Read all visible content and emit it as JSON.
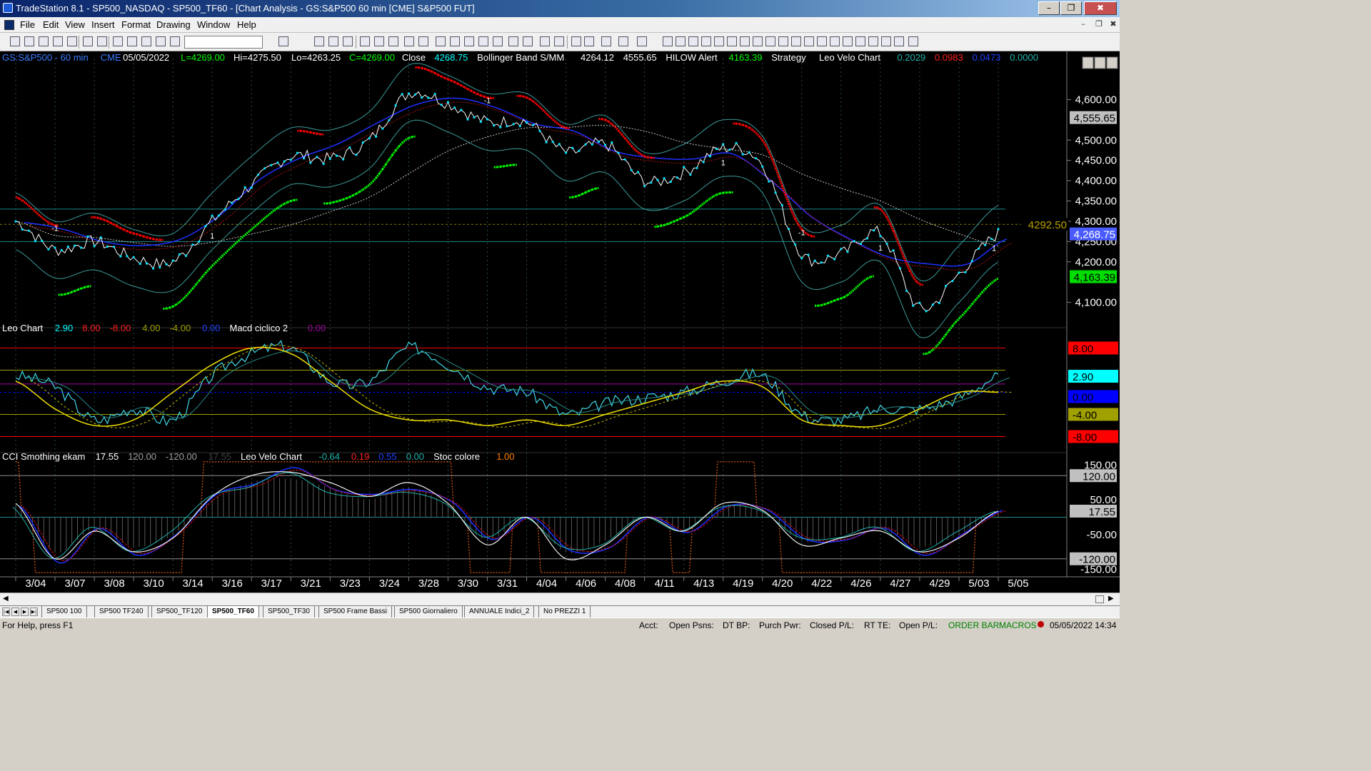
{
  "window": {
    "title": "TradeStation 8.1 - SP500_NASDAQ - SP500_TF60 - [Chart Analysis - GS:S&P500  60 min  [CME] S&P500 FUT]",
    "minimize": "–",
    "restore": "❐",
    "close": "✖"
  },
  "menu": {
    "items": [
      "File",
      "Edit",
      "View",
      "Insert",
      "Format",
      "Drawing",
      "Window",
      "Help"
    ],
    "mdi_min": "–",
    "mdi_restore": "❐",
    "mdi_close": "✖"
  },
  "toolbar": {
    "combo_value": ""
  },
  "price_panel": {
    "header": [
      {
        "text": "GS:S&P500 - 60 min",
        "color": "#3a7bff"
      },
      {
        "text": "CME",
        "color": "#3a7bff"
      },
      {
        "text": "05/05/2022",
        "color": "#ffffff"
      },
      {
        "text": "L=4269.00",
        "color": "#00ff00"
      },
      {
        "text": "Hi=4275.50",
        "color": "#ffffff"
      },
      {
        "text": "Lo=4263.25",
        "color": "#ffffff"
      },
      {
        "text": "C=4269.00",
        "color": "#00ff00"
      },
      {
        "text": "Close",
        "color": "#ffffff"
      },
      {
        "text": "4268.75",
        "color": "#00ffff"
      },
      {
        "text": "Bollinger Band S/MM",
        "color": "#ffffff"
      },
      {
        "text": "4264.12",
        "color": "#ffffff"
      },
      {
        "text": "4555.65",
        "color": "#ffffff"
      },
      {
        "text": "HILOW Alert",
        "color": "#ffffff"
      },
      {
        "text": "4163.39",
        "color": "#00ff00"
      },
      {
        "text": "Strategy",
        "color": "#ffffff"
      },
      {
        "text": "Leo Velo Chart",
        "color": "#ffffff"
      },
      {
        "text": "0.2029",
        "color": "#20b2aa"
      },
      {
        "text": "0.0983",
        "color": "#ff2020"
      },
      {
        "text": "0.0473",
        "color": "#2040ff"
      },
      {
        "text": "0.0000",
        "color": "#20b2aa"
      }
    ],
    "y_labels": [
      "4,600.00",
      "4,500.00",
      "4,450.00",
      "4,400.00",
      "4,350.00",
      "4,300.00",
      "4,250.00",
      "4,200.00",
      "4,100.00"
    ],
    "price_tags": [
      {
        "text": "4,555.65",
        "bg": "#c0c0c0",
        "fg": "#000000"
      },
      {
        "text": "4292.50",
        "bg": "#000000",
        "fg": "#b8a000"
      },
      {
        "text": "4,268.75",
        "bg": "#4a5cff",
        "fg": "#ffffff"
      },
      {
        "text": "4,163.39",
        "bg": "#00dd00",
        "fg": "#000000"
      }
    ],
    "strategy_marks": [
      "-1",
      "1",
      "-1",
      "1",
      "-1",
      "1",
      "1"
    ]
  },
  "leo_panel": {
    "header": [
      {
        "text": "Leo Chart",
        "color": "#ffffff"
      },
      {
        "text": "2.90",
        "color": "#00ffff"
      },
      {
        "text": "8.00",
        "color": "#ff2020"
      },
      {
        "text": "-8.00",
        "color": "#ff2020"
      },
      {
        "text": "4.00",
        "color": "#a0a000"
      },
      {
        "text": "-4.00",
        "color": "#a0a000"
      },
      {
        "text": "0.00",
        "color": "#2040ff"
      },
      {
        "text": "Macd ciclico 2",
        "color": "#ffffff"
      },
      {
        "text": "0.00",
        "color": "#a000a0"
      }
    ],
    "tags": [
      {
        "text": "8.00",
        "bg": "#ff0000",
        "fg": "#000000"
      },
      {
        "text": "2.90",
        "bg": "#00ffff",
        "fg": "#000000"
      },
      {
        "text": "0.00",
        "bg": "#0000ff",
        "fg": "#000000"
      },
      {
        "text": "-4.00",
        "bg": "#a0a000",
        "fg": "#000000"
      },
      {
        "text": "-8.00",
        "bg": "#ff0000",
        "fg": "#000000"
      }
    ]
  },
  "cci_panel": {
    "header": [
      {
        "text": "CCI Smothing ekam",
        "color": "#ffffff"
      },
      {
        "text": "17.55",
        "color": "#ffffff"
      },
      {
        "text": "120.00",
        "color": "#a0a0a0"
      },
      {
        "text": "-120.00",
        "color": "#a0a0a0"
      },
      {
        "text": "17.55",
        "color": "#404040"
      },
      {
        "text": "Leo Velo Chart",
        "color": "#ffffff"
      },
      {
        "text": "-0.64",
        "color": "#20b2aa"
      },
      {
        "text": "0.19",
        "color": "#ff2020"
      },
      {
        "text": "0.55",
        "color": "#2040ff"
      },
      {
        "text": "0.00",
        "color": "#20b2aa"
      },
      {
        "text": "Stoc colore",
        "color": "#ffffff"
      },
      {
        "text": "1.00",
        "color": "#ff8000"
      }
    ],
    "y_labels": [
      "150.00",
      "50.00",
      "-50.00",
      "-150.00"
    ],
    "tags": [
      {
        "text": "120.00",
        "bg": "#c0c0c0",
        "fg": "#000000"
      },
      {
        "text": "17.55",
        "bg": "#c0c0c0",
        "fg": "#000000"
      },
      {
        "text": "-120.00",
        "bg": "#c0c0c0",
        "fg": "#000000"
      }
    ]
  },
  "x_axis": {
    "labels": [
      "3/04",
      "3/07",
      "3/08",
      "3/10",
      "3/14",
      "3/16",
      "3/17",
      "3/21",
      "3/23",
      "3/24",
      "3/28",
      "3/30",
      "3/31",
      "4/04",
      "4/06",
      "4/08",
      "4/11",
      "4/13",
      "4/19",
      "4/20",
      "4/22",
      "4/26",
      "4/27",
      "4/29",
      "5/03",
      "5/05"
    ]
  },
  "tabs": [
    "SP500 100",
    "SP500 TF240",
    "SP500_TF120",
    "SP500_TF60",
    "SP500_TF30",
    "SP500 Frame Bassi",
    "SP500 Giornaliero",
    "ANNUALE Indici_2",
    "No PREZZI 1"
  ],
  "tabs_active": 3,
  "status": {
    "help": "For Help, press F1",
    "acct": "Acct:",
    "open_psns": "Open Psns:",
    "dt_bp": "DT BP:",
    "purch_pwr": "Purch Pwr:",
    "closed_pl": "Closed P/L:",
    "rt_te": "RT TE:",
    "open_pl": "Open P/L:",
    "order_bar": "ORDER BAR",
    "macros": "MACROS",
    "datetime": "05/05/2022 14:34"
  },
  "chart_data": [
    {
      "type": "line",
      "title": "GS:S&P500 - 60 min",
      "x": [
        "3/04",
        "3/07",
        "3/08",
        "3/10",
        "3/14",
        "3/16",
        "3/17",
        "3/21",
        "3/23",
        "3/24",
        "3/28",
        "3/30",
        "3/31",
        "4/04",
        "4/06",
        "4/08",
        "4/11",
        "4/13",
        "4/19",
        "4/20",
        "4/22",
        "4/26",
        "4/27",
        "4/29",
        "5/03",
        "5/05"
      ],
      "ylim": [
        4050,
        4680
      ],
      "series": [
        {
          "values": [
            4300,
            4230,
            4250,
            4210,
            4200,
            4300,
            4390,
            4460,
            4455,
            4500,
            4615,
            4590,
            4545,
            4545,
            4470,
            4490,
            4400,
            4420,
            4480,
            4440,
            4220,
            4220,
            4270,
            4085,
            4170,
            4269
          ]
        }
      ]
    },
    {
      "type": "line",
      "title": "Leo Chart",
      "x": [
        "3/04",
        "3/07",
        "3/08",
        "3/10",
        "3/14",
        "3/16",
        "3/17",
        "3/21",
        "3/23",
        "3/24",
        "3/28",
        "3/30",
        "3/31",
        "4/04",
        "4/06",
        "4/08",
        "4/11",
        "4/13",
        "4/19",
        "4/20",
        "4/22",
        "4/26",
        "4/27",
        "4/29",
        "5/03",
        "5/05"
      ],
      "ylim": [
        -10,
        10
      ],
      "series": [
        {
          "name": "Leo Chart",
          "values": [
            3,
            1,
            -5,
            -3,
            -5,
            3,
            7,
            8,
            2,
            2,
            8,
            5,
            1,
            0,
            -4,
            -2,
            -1,
            0,
            2,
            3,
            -4,
            -5,
            -3,
            -3,
            -1,
            2.9
          ]
        },
        {
          "name": "Macd ciclico 2",
          "values": [
            2,
            -3,
            -6,
            -5,
            0,
            5,
            8,
            7,
            2,
            -3,
            -5,
            -5,
            -6,
            -5,
            -6,
            -4,
            -2,
            0,
            2,
            1,
            -5,
            -6,
            -6,
            -3,
            0,
            0
          ]
        }
      ]
    },
    {
      "type": "line",
      "title": "CCI Smothing ekam",
      "x": [
        "3/04",
        "3/07",
        "3/08",
        "3/10",
        "3/14",
        "3/16",
        "3/17",
        "3/21",
        "3/23",
        "3/24",
        "3/28",
        "3/30",
        "3/31",
        "4/04",
        "4/06",
        "4/08",
        "4/11",
        "4/13",
        "4/19",
        "4/20",
        "4/22",
        "4/26",
        "4/27",
        "4/29",
        "5/03",
        "5/05"
      ],
      "ylim": [
        -170,
        170
      ],
      "series": [
        {
          "name": "CCI Smothing ekam",
          "values": [
            40,
            -120,
            -40,
            -100,
            -60,
            60,
            120,
            130,
            100,
            60,
            100,
            40,
            -80,
            0,
            -120,
            -80,
            0,
            -40,
            40,
            20,
            -80,
            -60,
            -40,
            -100,
            -60,
            17.55
          ]
        }
      ]
    }
  ]
}
